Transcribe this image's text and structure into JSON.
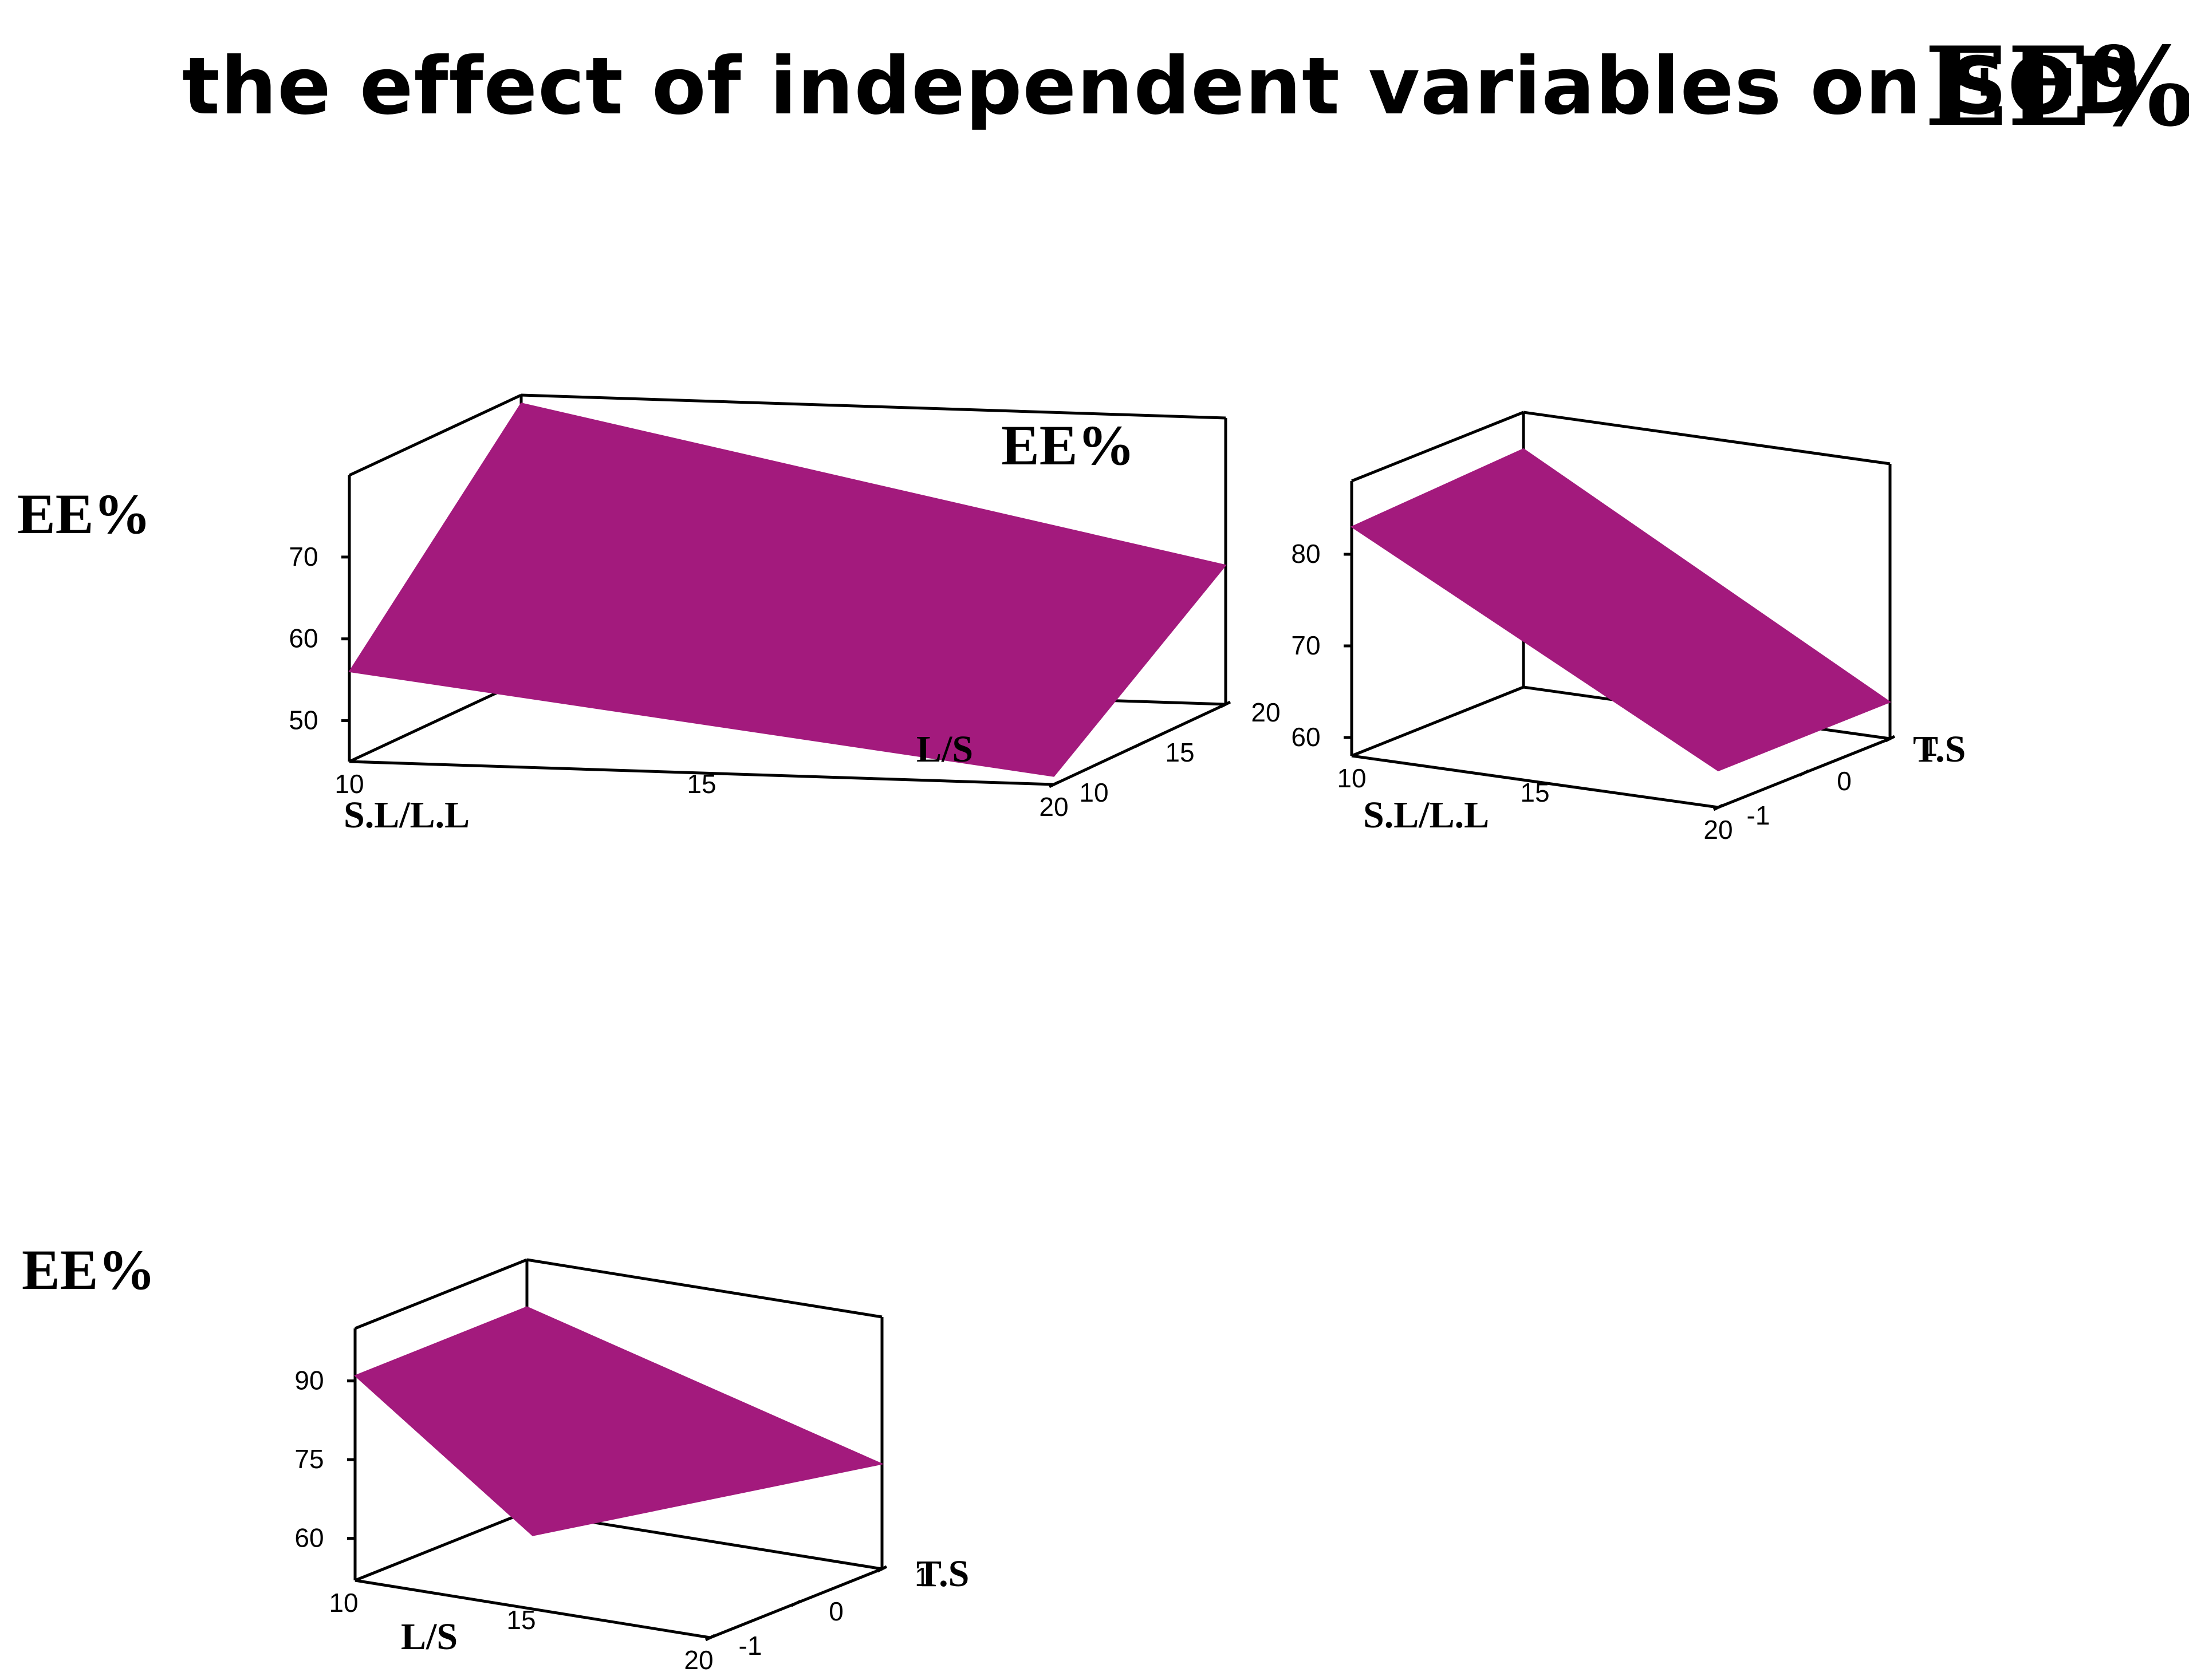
{
  "title": {
    "main": "the effect of independent variables on SOD",
    "ee": "EE%"
  },
  "colors": {
    "surface": "#a31a7d",
    "frame": "#000000",
    "background": "#ffffff"
  },
  "chart_data": [
    {
      "type": "surface3d",
      "zlabel": "EE%",
      "xlabel": "S.L/L.L",
      "ylabel": "L/S",
      "x_ticks": [
        "10",
        "15",
        "20"
      ],
      "y_ticks": [
        "10",
        "15",
        "20"
      ],
      "z_ticks": [
        "50",
        "60",
        "70"
      ],
      "xlim": [
        10,
        20
      ],
      "ylim": [
        10,
        20
      ],
      "zlim": [
        45,
        80
      ],
      "corners": [
        {
          "x": 10,
          "y": 10,
          "z": 56
        },
        {
          "x": 20,
          "y": 10,
          "z": 46
        },
        {
          "x": 20,
          "y": 20,
          "z": 62
        },
        {
          "x": 10,
          "y": 20,
          "z": 79
        }
      ]
    },
    {
      "type": "surface3d",
      "zlabel": "EE%",
      "xlabel": "S.L/L.L",
      "ylabel": "T.S",
      "x_ticks": [
        "10",
        "15",
        "20"
      ],
      "y_ticks": [
        "-1",
        "0",
        "1"
      ],
      "z_ticks": [
        "60",
        "70",
        "80"
      ],
      "xlim": [
        10,
        20
      ],
      "ylim": [
        -1,
        1
      ],
      "zlim": [
        58,
        88
      ],
      "corners": [
        {
          "x": 10,
          "y": -1,
          "z": 83
        },
        {
          "x": 20,
          "y": -1,
          "z": 62
        },
        {
          "x": 20,
          "y": 1,
          "z": 62
        },
        {
          "x": 10,
          "y": 1,
          "z": 84
        }
      ]
    },
    {
      "type": "surface3d",
      "zlabel": "EE%",
      "xlabel": "L/S",
      "ylabel": "T.S",
      "x_ticks": [
        "10",
        "15",
        "20"
      ],
      "y_ticks": [
        "-1",
        "0",
        "1"
      ],
      "z_ticks": [
        "60",
        "75",
        "90"
      ],
      "xlim": [
        10,
        20
      ],
      "ylim": [
        -1,
        1
      ],
      "zlim": [
        52,
        100
      ],
      "corners": [
        {
          "x": 10,
          "y": -1,
          "z": 91
        },
        {
          "x": 15,
          "y": -1,
          "z": 66
        },
        {
          "x": 20,
          "y": 1,
          "z": 72
        },
        {
          "x": 10,
          "y": 1,
          "z": 91
        }
      ]
    }
  ]
}
